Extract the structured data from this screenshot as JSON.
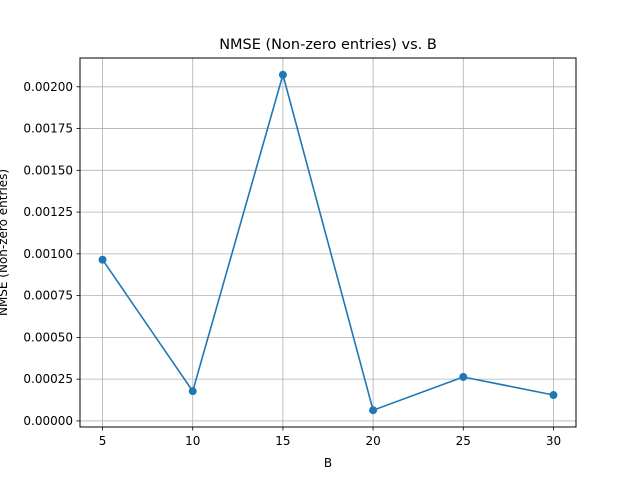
{
  "chart_data": {
    "type": "line",
    "title": "NMSE (Non-zero entries) vs. B",
    "xlabel": "B",
    "ylabel": "NMSE (Non-zero entries)",
    "x": [
      5,
      10,
      15,
      20,
      25,
      30
    ],
    "series": [
      {
        "values": [
          0.000965,
          0.000178,
          0.002072,
          6.4e-05,
          0.000263,
          0.000155
        ],
        "color": "#1f77b4",
        "marker": "circle"
      }
    ],
    "xlim": [
      3.75,
      31.25
    ],
    "ylim": [
      -3.64e-05,
      0.0021724
    ],
    "xticks": [
      5,
      10,
      15,
      20,
      25,
      30
    ],
    "xtick_labels": [
      "5",
      "10",
      "15",
      "20",
      "25",
      "30"
    ],
    "yticks": [
      0,
      0.00025,
      0.0005,
      0.00075,
      0.001,
      0.00125,
      0.0015,
      0.00175,
      0.002
    ],
    "ytick_labels": [
      "0.00000",
      "0.00025",
      "0.00050",
      "0.00075",
      "0.00100",
      "0.00125",
      "0.00150",
      "0.00175",
      "0.00200"
    ],
    "grid": true,
    "legend": false
  }
}
